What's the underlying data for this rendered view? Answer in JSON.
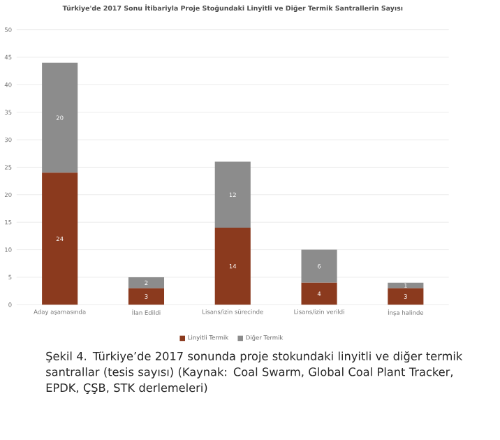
{
  "chart_data": {
    "type": "bar",
    "stacked": true,
    "title": "Türkiye'de 2017 Sonu İtibariyla Proje Stoğundaki Linyitli ve Diğer Termik Santrallerin Sayısı",
    "categories": [
      "Aday aşamasında",
      "İlan Edildi",
      "Lisans/izin sürecinde",
      "Lisans/izin verildi",
      "İnşa halinde"
    ],
    "series": [
      {
        "name": "Linyitli Termik",
        "color": "#8b3a1e",
        "values": [
          24,
          3,
          14,
          4,
          3
        ]
      },
      {
        "name": "Diğer Termik",
        "color": "#8c8c8c",
        "values": [
          20,
          2,
          12,
          6,
          1
        ]
      }
    ],
    "ylim": [
      0,
      50
    ],
    "yticks": [
      0,
      5,
      10,
      15,
      20,
      25,
      30,
      35,
      40,
      45,
      50
    ],
    "grid": "y",
    "legend": "bottom",
    "data_labels": true,
    "annotations": [
      "Şekil 4. Türkiye’de 2017 sonunda proje stokundaki linyitli ve diğer termik santrallar (tesis sayısı) (Kaynak: Coal Swarm, Global Coal Plant Tracker, EPDK, ÇŞB, STK derlemeleri)"
    ]
  }
}
